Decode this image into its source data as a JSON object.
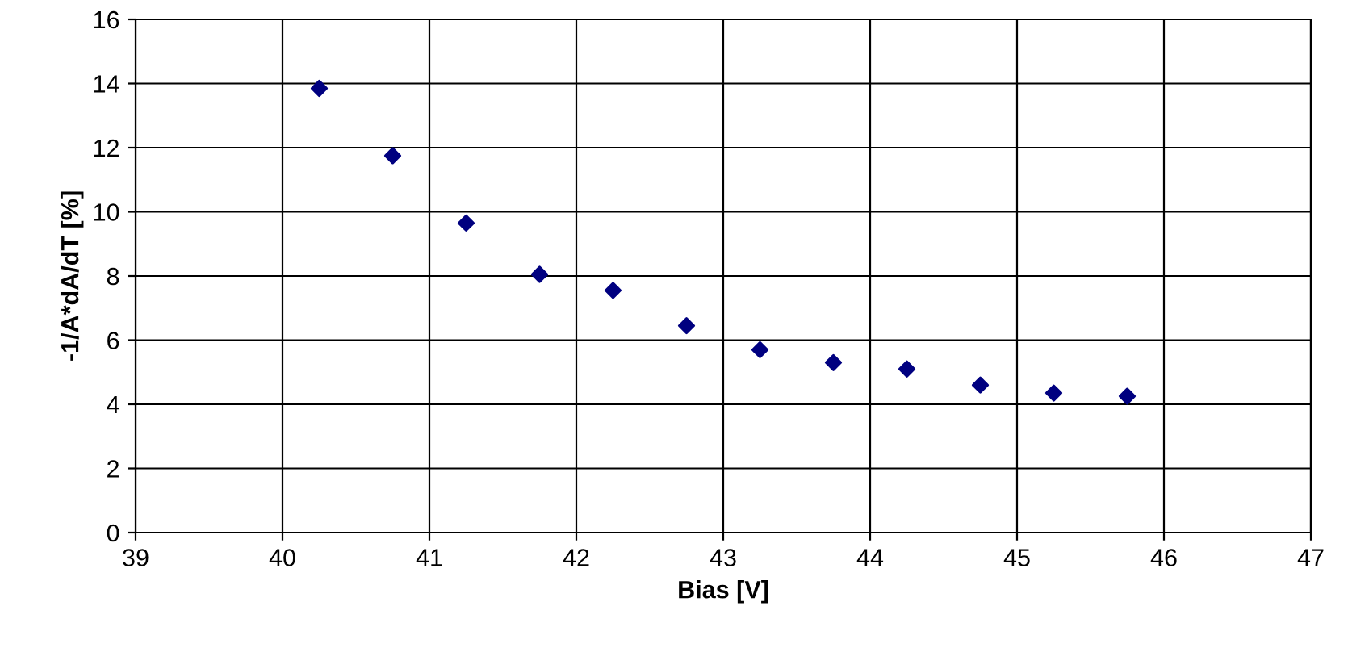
{
  "chart_data": {
    "type": "scatter",
    "xlabel": "Bias [V]",
    "ylabel": "-1/A*dA/dT [%]",
    "x": [
      40.25,
      40.75,
      41.25,
      41.75,
      42.25,
      42.75,
      43.25,
      43.75,
      44.25,
      44.75,
      45.25,
      45.75
    ],
    "series": [
      {
        "color": "#000080",
        "values": [
          13.85,
          11.75,
          9.65,
          8.05,
          7.55,
          6.45,
          5.7,
          5.3,
          5.1,
          4.6,
          4.35,
          4.25
        ]
      }
    ],
    "xlim": [
      39,
      47
    ],
    "xticks": [
      39,
      40,
      41,
      42,
      43,
      44,
      45,
      46,
      47
    ],
    "ylim": [
      0,
      16
    ],
    "yticks": [
      0,
      2,
      4,
      6,
      8,
      10,
      12,
      14,
      16
    ],
    "grid": true,
    "marker": "diamond",
    "legend": false
  }
}
